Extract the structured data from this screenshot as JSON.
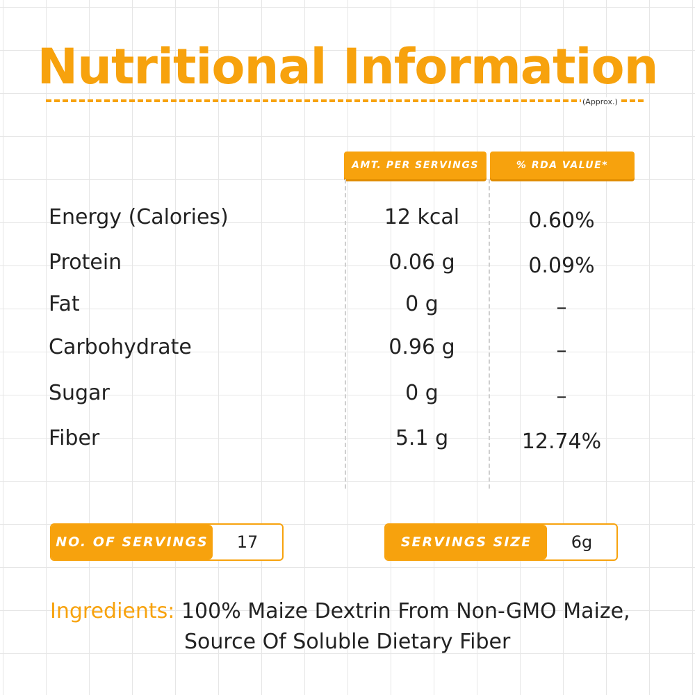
{
  "header": {
    "title": "Nutritional Information",
    "note": "(Approx.)"
  },
  "table": {
    "columns": [
      "AMT. PER SERVINGS",
      "% RDA VALUE*"
    ],
    "rows": [
      [
        "Energy (Calories)",
        "12 kcal",
        "0.60%"
      ],
      [
        "Protein",
        "0.06 g",
        "0.09%"
      ],
      [
        "Fat",
        "0 g",
        "–"
      ],
      [
        "Carbohydrate",
        "0.96 g",
        "–"
      ],
      [
        "Sugar",
        "0 g",
        "–"
      ],
      [
        "Fiber",
        "5.1 g",
        "12.74%"
      ]
    ]
  },
  "servings": [
    {
      "label": "NO. OF SERVINGS",
      "value": "17"
    },
    {
      "label": "SERVINGS SIZE",
      "value": "6g"
    }
  ],
  "ingredients": {
    "label": "Ingredients:",
    "lines": [
      "100% Maize Dextrin From Non-GMO Maize,",
      "Source Of Soluble Dietary Fiber"
    ]
  }
}
